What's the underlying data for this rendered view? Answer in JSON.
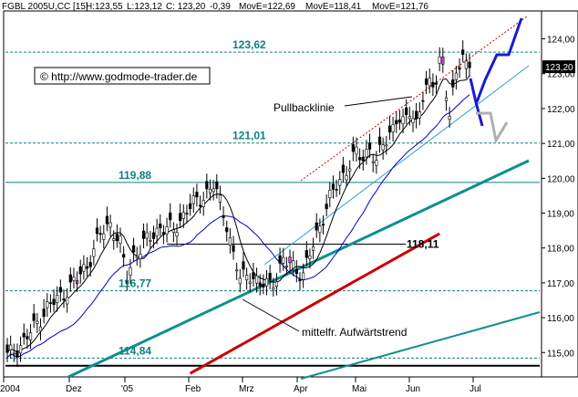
{
  "header": {
    "symbol": "FGBL 2005U,CC [15]",
    "high": "H:123,55",
    "low": "L:123,12",
    "close": "C: 123,20",
    "change": "-0,39",
    "mov1": "MovE=122,69",
    "mov2": "MovE=118,41",
    "mov3": "MovE=121,76",
    "mov1_color": "#000000",
    "mov2_color": "#cc0000",
    "mov3_color": "#0000cc"
  },
  "copyright": "© http://www.godmode-trader.de",
  "price_badge": "123,20",
  "annotations": {
    "pullback": "Pullbacklinie",
    "trend": "mittelfr. Aufwärtstrend"
  },
  "chart_data": {
    "type": "candlestick",
    "x_ticks": [
      "2004",
      "Dez",
      "'05",
      "Feb",
      "Mrz",
      "Apr",
      "Mai",
      "Jun",
      "Jul"
    ],
    "y_ticks": [
      "124,00",
      "123,00",
      "122,00",
      "121,00",
      "120,00",
      "119,00",
      "118,00",
      "117,00",
      "116,00",
      "115,00"
    ],
    "y_tick_values": [
      124,
      123,
      122,
      121,
      120,
      119,
      118,
      117,
      116,
      115
    ],
    "ylim": [
      114.3,
      124.8
    ],
    "levels": [
      {
        "label": "123,62",
        "value": 123.62,
        "color": "#0f7f7f"
      },
      {
        "label": "121,01",
        "value": 121.01,
        "color": "#0f7f7f"
      },
      {
        "label": "119,88",
        "value": 119.88,
        "color": "#0f7f7f"
      },
      {
        "label": "118,11",
        "value": 118.11,
        "color": "#000000"
      },
      {
        "label": "116,77",
        "value": 116.77,
        "color": "#0f7f7f"
      },
      {
        "label": "114,84",
        "value": 114.84,
        "color": "#0f7f7f"
      }
    ],
    "last_price": 123.2,
    "series_anchors": [
      [
        0,
        114.9
      ],
      [
        4,
        115.2
      ],
      [
        8,
        115.7
      ],
      [
        12,
        116.3
      ],
      [
        16,
        116.6
      ],
      [
        20,
        117.0
      ],
      [
        24,
        117.5
      ],
      [
        28,
        118.4
      ],
      [
        31,
        118.7
      ],
      [
        34,
        118.1
      ],
      [
        36,
        117.1
      ],
      [
        38,
        117.8
      ],
      [
        42,
        118.2
      ],
      [
        46,
        118.6
      ],
      [
        50,
        118.5
      ],
      [
        54,
        119.1
      ],
      [
        58,
        119.4
      ],
      [
        62,
        119.8
      ],
      [
        64,
        119.3
      ],
      [
        66,
        118.7
      ],
      [
        68,
        117.8
      ],
      [
        70,
        117.1
      ],
      [
        73,
        117.3
      ],
      [
        76,
        116.9
      ],
      [
        79,
        117.0
      ],
      [
        81,
        117.2
      ],
      [
        83,
        117.6
      ],
      [
        86,
        117.5
      ],
      [
        89,
        117.2
      ],
      [
        91,
        117.8
      ],
      [
        93,
        118.4
      ],
      [
        95,
        118.9
      ],
      [
        97,
        119.4
      ],
      [
        99,
        119.8
      ],
      [
        101,
        120.1
      ],
      [
        103,
        120.4
      ],
      [
        105,
        120.7
      ],
      [
        107,
        120.6
      ],
      [
        109,
        120.9
      ],
      [
        111,
        120.4
      ],
      [
        113,
        121.0
      ],
      [
        115,
        121.3
      ],
      [
        117,
        121.7
      ],
      [
        119,
        121.5
      ],
      [
        121,
        122.0
      ],
      [
        123,
        121.6
      ],
      [
        125,
        122.3
      ],
      [
        127,
        122.7
      ],
      [
        129,
        122.9
      ],
      [
        130,
        123.4
      ],
      [
        131,
        123.2
      ],
      [
        132,
        122.4
      ],
      [
        133,
        121.7
      ],
      [
        134,
        122.4
      ],
      [
        135,
        123.1
      ],
      [
        136,
        123.4
      ],
      [
        137,
        123.55
      ],
      [
        138,
        123.2
      ]
    ]
  }
}
